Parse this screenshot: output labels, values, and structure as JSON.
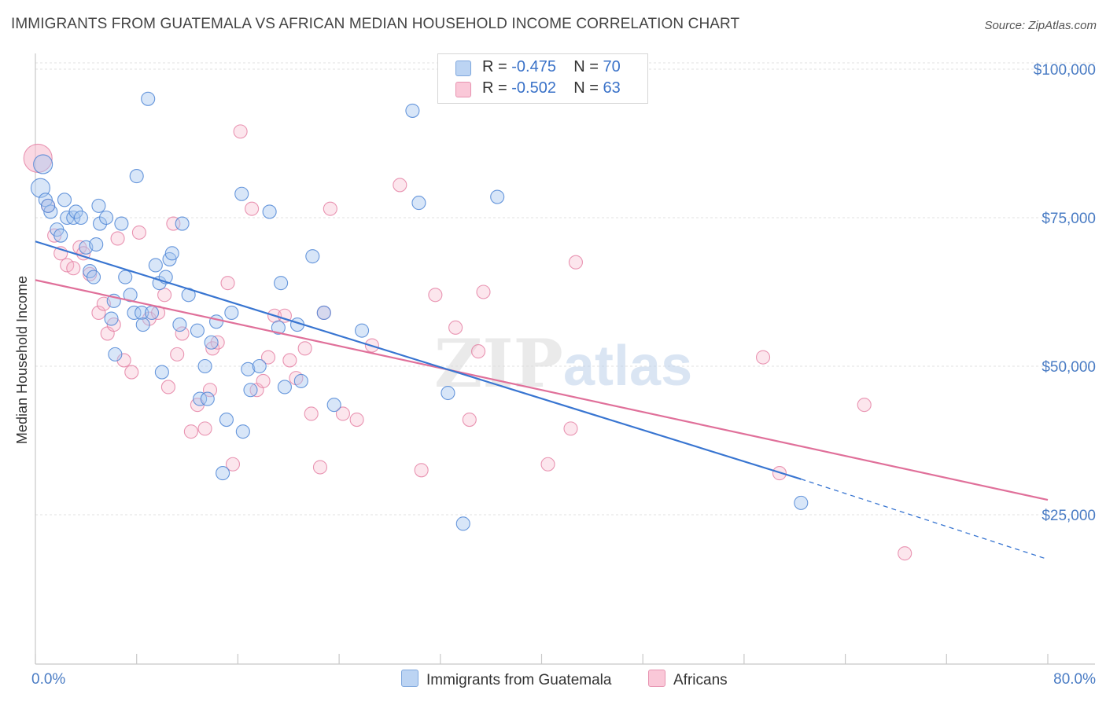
{
  "title": "IMMIGRANTS FROM GUATEMALA VS AFRICAN MEDIAN HOUSEHOLD INCOME CORRELATION CHART",
  "source": "Source: ZipAtlas.com",
  "watermark": {
    "zip": "ZIP",
    "atlas": "atlas"
  },
  "stats": [
    {
      "r_label": "R = ",
      "r_value": "-0.475",
      "n_label": "N = ",
      "n_value": "70",
      "color": "#a9c8ef"
    },
    {
      "r_label": "R = ",
      "r_value": "-0.502",
      "n_label": "N = ",
      "n_value": "63",
      "color": "#f5b8cc"
    }
  ],
  "legend": [
    {
      "label": "Immigrants from Guatemala",
      "color": "#a9c8ef"
    },
    {
      "label": "Africans",
      "color": "#f5b8cc"
    }
  ],
  "chart_data": {
    "type": "scatter",
    "title": "IMMIGRANTS FROM GUATEMALA VS AFRICAN MEDIAN HOUSEHOLD INCOME CORRELATION CHART",
    "xlabel": "",
    "ylabel": "Median Household Income",
    "xlim": [
      0,
      80
    ],
    "ylim": [
      0,
      105000
    ],
    "x_tick_labels": [
      "0.0%",
      "80.0%"
    ],
    "y_ticks": [
      25000,
      50000,
      75000,
      100000
    ],
    "y_tick_labels": [
      "$25,000",
      "$50,000",
      "$75,000",
      "$100,000"
    ],
    "grid": true,
    "series": [
      {
        "name": "Immigrants from Guatemala",
        "color": "#4f86d6",
        "fill": "#a9c8ef",
        "trend": {
          "x0": 0,
          "y0": 71000,
          "x1": 60.5,
          "y1": 31000,
          "dashed_to_x": 80,
          "dashed_to_y": 17500,
          "color": "#3875d1"
        },
        "points": [
          [
            0.4,
            80000
          ],
          [
            0.8,
            78000
          ],
          [
            1.2,
            76000
          ],
          [
            1.7,
            73000
          ],
          [
            2.0,
            72000
          ],
          [
            2.3,
            78000
          ],
          [
            2.5,
            75000
          ],
          [
            3.0,
            75000
          ],
          [
            3.2,
            76000
          ],
          [
            3.6,
            75000
          ],
          [
            4.0,
            70000
          ],
          [
            4.3,
            66000
          ],
          [
            4.6,
            65000
          ],
          [
            5.0,
            77000
          ],
          [
            5.1,
            74000
          ],
          [
            5.6,
            75000
          ],
          [
            6.0,
            58000
          ],
          [
            6.2,
            61000
          ],
          [
            6.3,
            52000
          ],
          [
            6.8,
            74000
          ],
          [
            7.1,
            65000
          ],
          [
            7.5,
            62000
          ],
          [
            7.8,
            59000
          ],
          [
            8.0,
            82000
          ],
          [
            8.4,
            59000
          ],
          [
            8.5,
            57000
          ],
          [
            8.9,
            95000
          ],
          [
            9.2,
            59000
          ],
          [
            9.5,
            67000
          ],
          [
            9.8,
            64000
          ],
          [
            10.0,
            49000
          ],
          [
            10.3,
            65000
          ],
          [
            10.6,
            68000
          ],
          [
            10.8,
            69000
          ],
          [
            11.4,
            57000
          ],
          [
            11.6,
            74000
          ],
          [
            12.1,
            62000
          ],
          [
            12.8,
            56000
          ],
          [
            13.0,
            44500
          ],
          [
            13.4,
            50000
          ],
          [
            13.6,
            44500
          ],
          [
            13.9,
            54000
          ],
          [
            14.3,
            57500
          ],
          [
            14.8,
            32000
          ],
          [
            15.1,
            41000
          ],
          [
            15.5,
            59000
          ],
          [
            16.3,
            79000
          ],
          [
            16.4,
            39000
          ],
          [
            16.8,
            49500
          ],
          [
            17.0,
            46000
          ],
          [
            17.7,
            50000
          ],
          [
            18.5,
            76000
          ],
          [
            19.2,
            56500
          ],
          [
            19.4,
            64000
          ],
          [
            19.7,
            46500
          ],
          [
            20.7,
            57000
          ],
          [
            21.0,
            47500
          ],
          [
            21.9,
            68500
          ],
          [
            22.8,
            59000
          ],
          [
            23.6,
            43500
          ],
          [
            25.8,
            56000
          ],
          [
            29.8,
            93000
          ],
          [
            30.3,
            77500
          ],
          [
            32.6,
            45500
          ],
          [
            33.8,
            23500
          ],
          [
            36.5,
            78500
          ],
          [
            60.5,
            27000
          ],
          [
            0.6,
            84000
          ],
          [
            1.0,
            77000
          ],
          [
            4.8,
            70500
          ]
        ]
      },
      {
        "name": "Africans",
        "color": "#e47ca0",
        "fill": "#f5b8cc",
        "trend": {
          "x0": 0,
          "y0": 64500,
          "x1": 80,
          "y1": 27500,
          "color": "#e0709a"
        },
        "points": [
          [
            0.2,
            85000
          ],
          [
            1.0,
            77000
          ],
          [
            1.5,
            72000
          ],
          [
            2.0,
            69000
          ],
          [
            2.5,
            67000
          ],
          [
            3.0,
            66500
          ],
          [
            3.5,
            70000
          ],
          [
            3.8,
            69000
          ],
          [
            4.3,
            65500
          ],
          [
            5.0,
            59000
          ],
          [
            5.4,
            60500
          ],
          [
            5.7,
            55500
          ],
          [
            6.2,
            57000
          ],
          [
            6.5,
            71500
          ],
          [
            7.0,
            51000
          ],
          [
            7.6,
            49000
          ],
          [
            8.2,
            72500
          ],
          [
            9.0,
            58000
          ],
          [
            9.7,
            59000
          ],
          [
            10.2,
            62000
          ],
          [
            10.5,
            46500
          ],
          [
            10.9,
            74000
          ],
          [
            11.2,
            52000
          ],
          [
            11.6,
            55500
          ],
          [
            12.3,
            39000
          ],
          [
            12.8,
            43500
          ],
          [
            13.4,
            39500
          ],
          [
            13.8,
            46000
          ],
          [
            14.0,
            53000
          ],
          [
            14.4,
            54000
          ],
          [
            15.2,
            64000
          ],
          [
            15.6,
            33500
          ],
          [
            16.2,
            89500
          ],
          [
            17.1,
            76500
          ],
          [
            17.5,
            46000
          ],
          [
            18.0,
            47500
          ],
          [
            18.4,
            51500
          ],
          [
            18.9,
            58500
          ],
          [
            19.7,
            58500
          ],
          [
            20.1,
            51000
          ],
          [
            20.6,
            48000
          ],
          [
            21.3,
            53000
          ],
          [
            21.8,
            42000
          ],
          [
            22.5,
            33000
          ],
          [
            22.8,
            59000
          ],
          [
            23.3,
            76500
          ],
          [
            24.3,
            42000
          ],
          [
            25.4,
            41000
          ],
          [
            26.6,
            53500
          ],
          [
            28.8,
            80500
          ],
          [
            30.5,
            32500
          ],
          [
            31.6,
            62000
          ],
          [
            33.2,
            56500
          ],
          [
            34.3,
            41000
          ],
          [
            35.0,
            52500
          ],
          [
            35.4,
            62500
          ],
          [
            40.5,
            33500
          ],
          [
            42.3,
            39500
          ],
          [
            42.7,
            67500
          ],
          [
            57.5,
            51500
          ],
          [
            58.8,
            32000
          ],
          [
            65.5,
            43500
          ],
          [
            68.7,
            18500
          ]
        ]
      }
    ]
  }
}
